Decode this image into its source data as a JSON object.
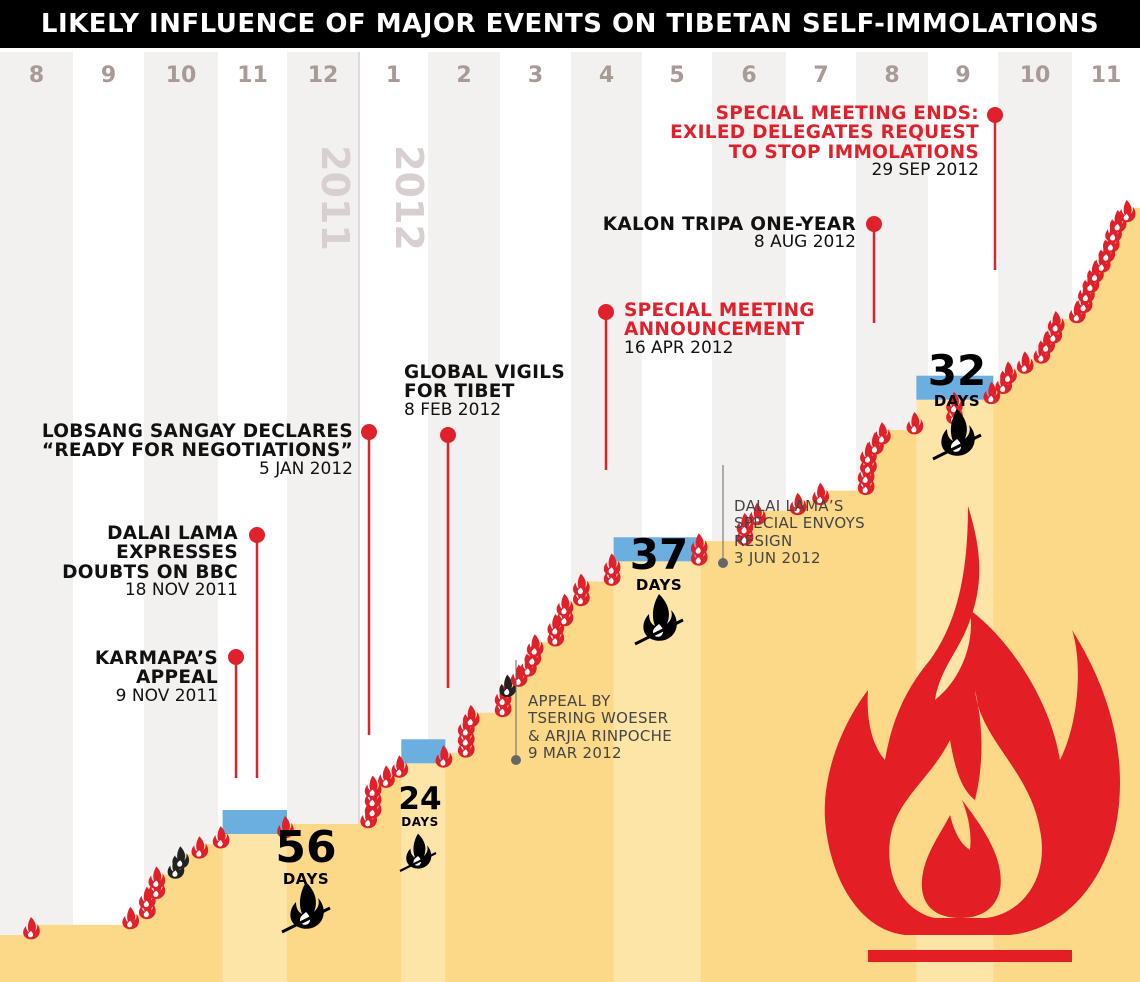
{
  "title": "LIKELY INFLUENCE OF MAJOR EVENTS ON TIBETAN SELF-IMMOLATIONS",
  "colors": {
    "background": "#ffffff",
    "band": "#f3f0f0",
    "area": "#fcd989",
    "gap_highlight": "#fde5a8",
    "gap_bar": "#6baee0",
    "red": "#e0202a",
    "black": "#111111"
  },
  "months": [
    "8",
    "9",
    "10",
    "11",
    "12",
    "1",
    "2",
    "3",
    "4",
    "5",
    "6",
    "7",
    "8",
    "9",
    "10",
    "11"
  ],
  "year_labels": [
    "2011",
    "2012"
  ],
  "events": [
    {
      "key": "karmapa",
      "label_lines": [
        "KARMAPA’S",
        "APPEAL"
      ],
      "date": "9 NOV 2011",
      "color": "black"
    },
    {
      "key": "dalai_bbc",
      "label_lines": [
        "DALAI LAMA",
        "EXPRESSES",
        "DOUBTS ON BBC"
      ],
      "date": "18 NOV 2011",
      "color": "black"
    },
    {
      "key": "lobsang",
      "label_lines": [
        "LOBSANG SANGAY DECLARES",
        "“READY FOR NEGOTIATIONS”"
      ],
      "date": "5 JAN 2012",
      "color": "black"
    },
    {
      "key": "vigils",
      "label_lines": [
        "GLOBAL VIGILS",
        "FOR TIBET"
      ],
      "date": "8 FEB 2012",
      "color": "black"
    },
    {
      "key": "special_announce",
      "label_lines": [
        "SPECIAL MEETING",
        "ANNOUNCEMENT"
      ],
      "date": "16 APR 2012",
      "color": "red"
    },
    {
      "key": "kalon",
      "label_lines": [
        "KALON TRIPA ONE-YEAR"
      ],
      "date": "8 AUG 2012",
      "color": "black"
    },
    {
      "key": "special_ends",
      "label_lines": [
        "SPECIAL MEETING ENDS:",
        "EXILED DELEGATES REQUEST",
        "TO STOP IMMOLATIONS"
      ],
      "date": "29 SEP 2012",
      "color": "red"
    }
  ],
  "minor_events": [
    {
      "key": "woeser",
      "label_lines": [
        "APPEAL BY",
        "TSERING WOESER",
        "& ARJIA RINPOCHE"
      ],
      "date": "9 MAR 2012"
    },
    {
      "key": "envoys",
      "label_lines": [
        "DALAI LAMA’S",
        "SPECIAL ENVOYS",
        "RESIGN"
      ],
      "date": "3 JUN 2012"
    }
  ],
  "gaps": [
    {
      "days": "56",
      "unit": "DAYS"
    },
    {
      "days": "24",
      "unit": "DAYS"
    },
    {
      "days": "37",
      "unit": "DAYS"
    },
    {
      "days": "32",
      "unit": "DAYS"
    }
  ],
  "chart_data": {
    "type": "area",
    "title": "LIKELY INFLUENCE OF MAJOR EVENTS ON TIBETAN SELF-IMMOLATIONS",
    "x_axis": "months Aug 2011 – Nov 2012",
    "xlabel": "",
    "ylabel": "",
    "series": [
      {
        "x": [
          "2011-08-15",
          "2011-09-26",
          "2011-10-03",
          "2011-10-07",
          "2011-10-15",
          "2011-10-17",
          "2011-10-25",
          "2011-11-03",
          "2011-12-01",
          "2012-01-06",
          "2012-01-08",
          "2012-01-14",
          "2012-01-20",
          "2012-02-08",
          "2012-02-17",
          "2012-02-19",
          "2012-03-03",
          "2012-03-05",
          "2012-03-10",
          "2012-03-14",
          "2012-03-16",
          "2012-03-17",
          "2012-03-26",
          "2012-03-30",
          "2012-04-06",
          "2012-04-19",
          "2012-05-27",
          "2012-06-15",
          "2012-06-20",
          "2012-07-07",
          "2012-07-17",
          "2012-08-06",
          "2012-08-07",
          "2012-08-10",
          "2012-08-13",
          "2012-08-27",
          "2012-09-13",
          "2012-09-29",
          "2012-10-04",
          "2012-10-06",
          "2012-10-13",
          "2012-10-20",
          "2012-10-22",
          "2012-10-25",
          "2012-10-26",
          "2012-11-04",
          "2012-11-07",
          "2012-11-08",
          "2012-11-10",
          "2012-11-12",
          "2012-11-15",
          "2012-11-17",
          "2012-11-19",
          "2012-11-20",
          "2012-11-22",
          "2012-11-26"
        ],
        "counts": [
          1,
          1,
          2,
          2,
          1,
          1,
          1,
          1,
          1,
          1,
          3,
          1,
          1,
          1,
          3,
          1,
          2,
          1,
          1,
          1,
          1,
          1,
          2,
          2,
          2,
          2,
          2,
          2,
          1,
          1,
          1,
          2,
          2,
          1,
          1,
          1,
          2,
          1,
          1,
          1,
          1,
          1,
          1,
          1,
          1,
          1,
          1,
          1,
          1,
          1,
          1,
          1,
          1,
          1,
          1,
          1
        ]
      }
    ],
    "gaps_days": [
      56,
      24,
      37,
      32
    ],
    "grid": false
  }
}
